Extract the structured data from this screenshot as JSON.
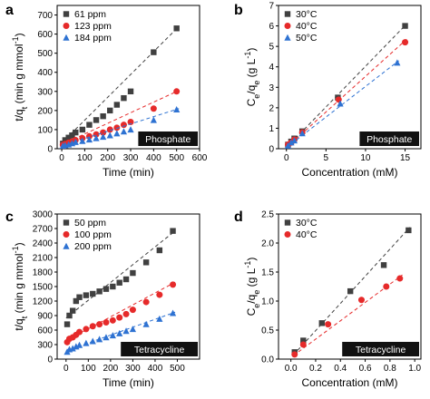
{
  "chart_data": [
    {
      "panel": "a",
      "type": "scatter",
      "xlabel": "Time (min)",
      "ylabel": "t/q_t (min g mmol^-1)",
      "xlim": [
        -20,
        600
      ],
      "ylim": [
        0,
        750
      ],
      "xticks": [
        0,
        100,
        200,
        300,
        400,
        500,
        600
      ],
      "yticks": [
        0,
        100,
        200,
        300,
        400,
        500,
        600,
        700
      ],
      "annotation": "Phosphate",
      "legend_position": "top-left",
      "series": [
        {
          "name": "61 ppm",
          "color": "#404040",
          "marker": "square",
          "x": [
            5,
            15,
            30,
            45,
            60,
            90,
            120,
            150,
            180,
            210,
            240,
            270,
            300,
            400,
            500
          ],
          "y": [
            27,
            45,
            58,
            70,
            85,
            100,
            125,
            150,
            170,
            200,
            230,
            265,
            300,
            505,
            630
          ],
          "fit": [
            [
              0,
              30
            ],
            [
              510,
              640
            ]
          ]
        },
        {
          "name": "123 ppm",
          "color": "#e62a2a",
          "marker": "circle",
          "x": [
            5,
            15,
            30,
            45,
            60,
            90,
            120,
            150,
            180,
            210,
            240,
            270,
            300,
            400,
            500
          ],
          "y": [
            20,
            25,
            32,
            38,
            45,
            55,
            65,
            75,
            85,
            100,
            110,
            125,
            140,
            210,
            300
          ],
          "fit": [
            [
              0,
              22
            ],
            [
              510,
              305
            ]
          ]
        },
        {
          "name": "184 ppm",
          "color": "#2e72d2",
          "marker": "triangle",
          "x": [
            5,
            15,
            30,
            45,
            60,
            90,
            120,
            150,
            180,
            210,
            240,
            270,
            300,
            400,
            500
          ],
          "y": [
            15,
            18,
            22,
            28,
            35,
            40,
            48,
            55,
            62,
            70,
            80,
            90,
            100,
            150,
            205
          ],
          "fit": [
            [
              0,
              15
            ],
            [
              510,
              210
            ]
          ]
        }
      ]
    },
    {
      "panel": "b",
      "type": "scatter",
      "xlabel": "Concentration (mM)",
      "ylabel": "C_e/q_e (g L^-1)",
      "xlim": [
        -1,
        17
      ],
      "ylim": [
        0,
        7
      ],
      "xticks": [
        0,
        5,
        10,
        15
      ],
      "yticks": [
        0,
        1,
        2,
        3,
        4,
        5,
        6,
        7
      ],
      "annotation": "Phosphate",
      "legend_position": "top-left",
      "series": [
        {
          "name": "30°C",
          "color": "#404040",
          "marker": "square",
          "x": [
            0.2,
            0.6,
            1.0,
            2.0,
            6.5,
            15.0
          ],
          "y": [
            0.2,
            0.35,
            0.5,
            0.85,
            2.5,
            6.0
          ],
          "fit": [
            [
              0,
              0.05
            ],
            [
              15.2,
              6.1
            ]
          ]
        },
        {
          "name": "40°C",
          "color": "#e62a2a",
          "marker": "circle",
          "x": [
            0.2,
            0.6,
            1.0,
            2.0,
            6.6,
            15.0
          ],
          "y": [
            0.2,
            0.3,
            0.45,
            0.8,
            2.4,
            5.2
          ],
          "fit": [
            [
              0,
              0.05
            ],
            [
              15.2,
              5.35
            ]
          ]
        },
        {
          "name": "50°C",
          "color": "#2e72d2",
          "marker": "triangle",
          "x": [
            0.2,
            0.6,
            1.0,
            2.0,
            6.8,
            14.0
          ],
          "y": [
            0.15,
            0.3,
            0.4,
            0.75,
            2.2,
            4.2
          ],
          "fit": [
            [
              0,
              0.05
            ],
            [
              14.2,
              4.3
            ]
          ]
        }
      ]
    },
    {
      "panel": "c",
      "type": "scatter",
      "xlabel": "Time (min)",
      "ylabel": "t/q_t (min g mmol^-1)",
      "xlim": [
        -40,
        600
      ],
      "ylim": [
        0,
        3000
      ],
      "xticks": [
        0,
        100,
        200,
        300,
        400,
        500
      ],
      "yticks": [
        0,
        300,
        600,
        900,
        1200,
        1500,
        1800,
        2100,
        2400,
        2700,
        3000
      ],
      "annotation": "Tetracycline",
      "legend_position": "top-left",
      "series": [
        {
          "name": "50 ppm",
          "color": "#404040",
          "marker": "square",
          "x": [
            5,
            15,
            30,
            45,
            60,
            90,
            120,
            150,
            180,
            210,
            240,
            270,
            300,
            360,
            420,
            480
          ],
          "y": [
            720,
            900,
            1000,
            1200,
            1280,
            1320,
            1350,
            1400,
            1450,
            1500,
            1580,
            1650,
            1780,
            2000,
            2250,
            2650
          ],
          "fit": [
            [
              0,
              850
            ],
            [
              490,
              2650
            ]
          ]
        },
        {
          "name": "100 ppm",
          "color": "#e62a2a",
          "marker": "circle",
          "x": [
            5,
            15,
            30,
            45,
            60,
            90,
            120,
            150,
            180,
            210,
            240,
            270,
            300,
            360,
            420,
            480
          ],
          "y": [
            350,
            420,
            450,
            500,
            560,
            620,
            680,
            720,
            760,
            800,
            860,
            930,
            1020,
            1180,
            1330,
            1540
          ],
          "fit": [
            [
              0,
              380
            ],
            [
              490,
              1590
            ]
          ]
        },
        {
          "name": "200 ppm",
          "color": "#2e72d2",
          "marker": "triangle",
          "x": [
            5,
            15,
            30,
            45,
            60,
            90,
            120,
            150,
            180,
            210,
            240,
            270,
            300,
            360,
            420,
            480
          ],
          "y": [
            150,
            200,
            220,
            260,
            290,
            330,
            370,
            410,
            450,
            490,
            530,
            580,
            620,
            720,
            830,
            950
          ],
          "fit": [
            [
              0,
              170
            ],
            [
              490,
              970
            ]
          ]
        }
      ]
    },
    {
      "panel": "d",
      "type": "scatter",
      "xlabel": "Concentration (mM)",
      "ylabel": "C_e/q_e (g L^-1)",
      "xlim": [
        -0.1,
        1.05
      ],
      "ylim": [
        0,
        2.5
      ],
      "xticks": [
        0.0,
        0.2,
        0.4,
        0.6,
        0.8,
        1.0
      ],
      "yticks": [
        0.0,
        0.5,
        1.0,
        1.5,
        2.0,
        2.5
      ],
      "annotation": "Tetracycline",
      "legend_position": "top-left",
      "series": [
        {
          "name": "30°C",
          "color": "#404040",
          "marker": "square",
          "x": [
            0.03,
            0.1,
            0.25,
            0.48,
            0.75,
            0.95
          ],
          "y": [
            0.12,
            0.32,
            0.62,
            1.17,
            1.62,
            2.22
          ],
          "fit": [
            [
              0.02,
              0.07
            ],
            [
              0.96,
              2.27
            ]
          ]
        },
        {
          "name": "40°C",
          "color": "#e62a2a",
          "marker": "circle",
          "x": [
            0.03,
            0.1,
            0.3,
            0.57,
            0.77,
            0.88
          ],
          "y": [
            0.08,
            0.25,
            0.6,
            1.02,
            1.25,
            1.39
          ],
          "fit": [
            [
              0.02,
              0.06
            ],
            [
              0.9,
              1.45
            ]
          ]
        }
      ]
    }
  ]
}
